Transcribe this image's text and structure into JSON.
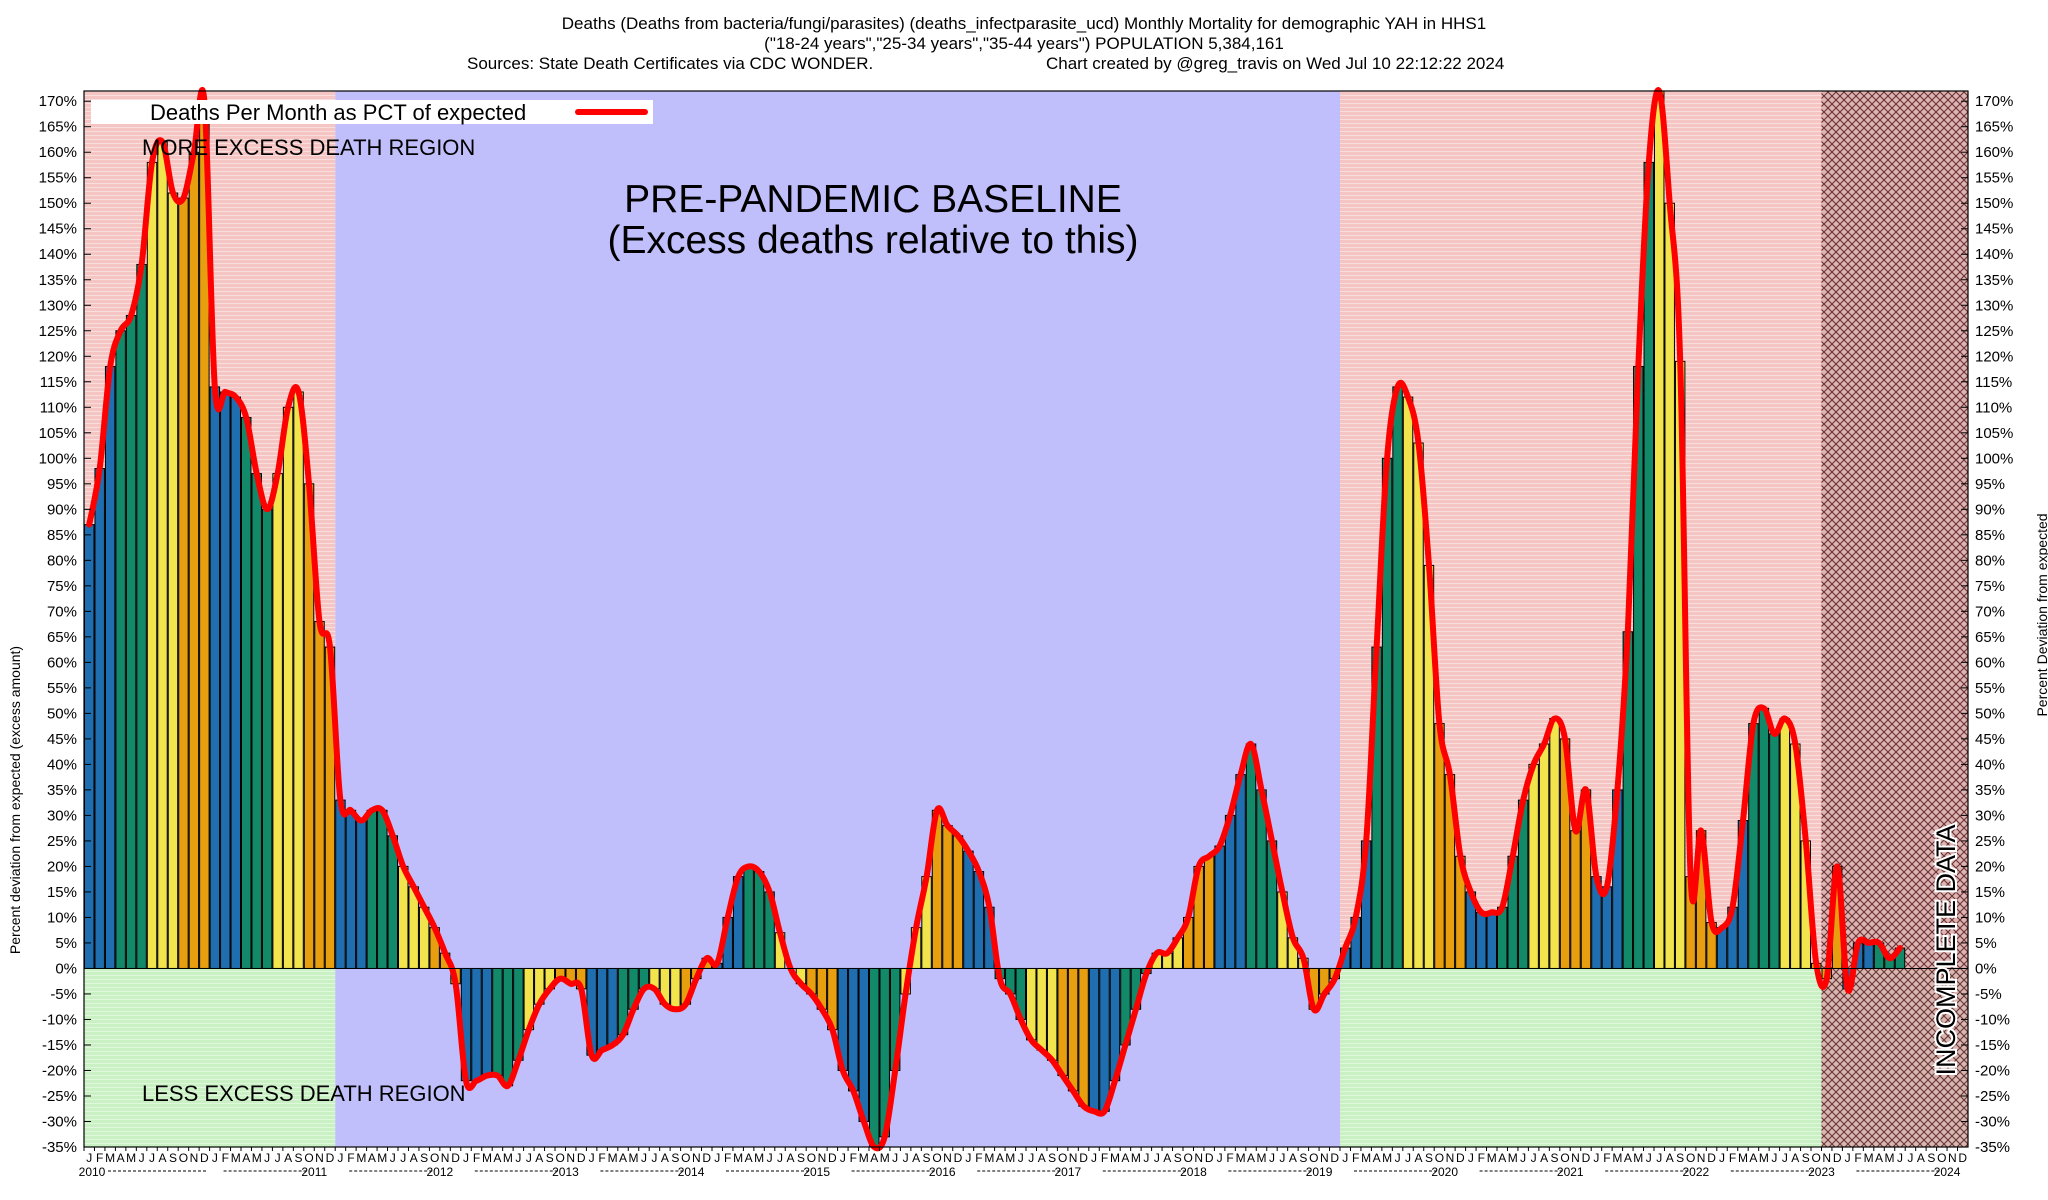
{
  "chart_data": {
    "type": "bar",
    "title_lines": [
      "Deaths (Deaths from bacteria/fungi/parasites) (deaths_infectparasite_ucd) Monthly Mortality for demographic YAH in HHS1",
      "(\"18-24 years\",\"25-34 years\",\"35-44 years\") POPULATION 5,384,161",
      "Sources: State Death Certificates via CDC WONDER.",
      "Chart created by @greg_travis on Wed Jul 10 22:12:22 2024"
    ],
    "ylabel_left": "Percent deviation from expected (excess amount)",
    "ylabel_right": "Percent Deviation from expected",
    "ylim": [
      -35,
      172
    ],
    "y_ticks": [
      -35,
      -30,
      -25,
      -20,
      -15,
      -10,
      -5,
      0,
      5,
      10,
      15,
      20,
      25,
      30,
      35,
      40,
      45,
      50,
      55,
      60,
      65,
      70,
      75,
      80,
      85,
      90,
      95,
      100,
      105,
      110,
      115,
      120,
      125,
      130,
      135,
      140,
      145,
      150,
      155,
      160,
      165,
      170
    ],
    "tick_suffix": "%",
    "legend": "Deaths Per Month as PCT of expected",
    "legend_position": "top-left",
    "annotations": {
      "more_excess": "MORE EXCESS DEATH REGION",
      "less_excess": "LESS EXCESS DEATH REGION",
      "baseline_line1": "PRE-PANDEMIC BASELINE",
      "baseline_line2": "(Excess deaths relative to this)",
      "incomplete": "INCOMPLETE DATA"
    },
    "month_letters": [
      "J",
      "F",
      "M",
      "A",
      "M",
      "J",
      "J",
      "A",
      "S",
      "O",
      "N",
      "D"
    ],
    "years": [
      "2010",
      "2011",
      "2012",
      "2013",
      "2014",
      "2015",
      "2016",
      "2017",
      "2018",
      "2019",
      "2020",
      "2021",
      "2022",
      "2023",
      "2024"
    ],
    "start": "2010-01",
    "baseline_period": [
      "2012-01",
      "2019-12"
    ],
    "incomplete_from": "2023-11",
    "quarter_colors": [
      "#1f6fb0",
      "#128a6a",
      "#f2e44c",
      "#e79f10"
    ],
    "colors": {
      "line": "#ff0000",
      "baseline_bg": "#c0bffb",
      "excess_bg": "#f5c5c4",
      "less_bg": "#c9f1c3",
      "hatch": "#b08888"
    },
    "values": [
      87,
      98,
      118,
      125,
      128,
      138,
      158,
      162,
      152,
      151,
      160,
      170,
      114,
      113,
      112,
      108,
      97,
      90,
      97,
      110,
      113,
      95,
      68,
      63,
      33,
      31,
      29,
      31,
      31,
      26,
      20,
      16,
      12,
      8,
      3,
      -3,
      -22,
      -22,
      -21,
      -21,
      -23,
      -18,
      -12,
      -7,
      -4,
      -2,
      -3,
      -4,
      -17,
      -16,
      -15,
      -13,
      -8,
      -4,
      -4,
      -7,
      -8,
      -7,
      -2,
      2,
      1,
      10,
      18,
      20,
      19,
      15,
      7,
      0,
      -3,
      -5,
      -8,
      -12,
      -20,
      -24,
      -30,
      -35,
      -33,
      -20,
      -5,
      8,
      18,
      31,
      28,
      26,
      23,
      19,
      12,
      -2,
      -5,
      -10,
      -14,
      -16,
      -18,
      -21,
      -24,
      -27,
      -28,
      -28,
      -22,
      -15,
      -8,
      -1,
      3,
      3,
      6,
      10,
      20,
      22,
      24,
      30,
      38,
      44,
      35,
      25,
      15,
      6,
      2,
      -8,
      -5,
      -2,
      4,
      10,
      25,
      63,
      100,
      114,
      112,
      103,
      79,
      48,
      38,
      22,
      15,
      11,
      11,
      12,
      22,
      33,
      40,
      44,
      49,
      45,
      27,
      35,
      18,
      16,
      35,
      66,
      118,
      158,
      175,
      150,
      119,
      18,
      27,
      9,
      8,
      12,
      29,
      48,
      51,
      46,
      49,
      44,
      25,
      1,
      -2,
      20,
      -4,
      5,
      5,
      5,
      2,
      4
    ]
  }
}
